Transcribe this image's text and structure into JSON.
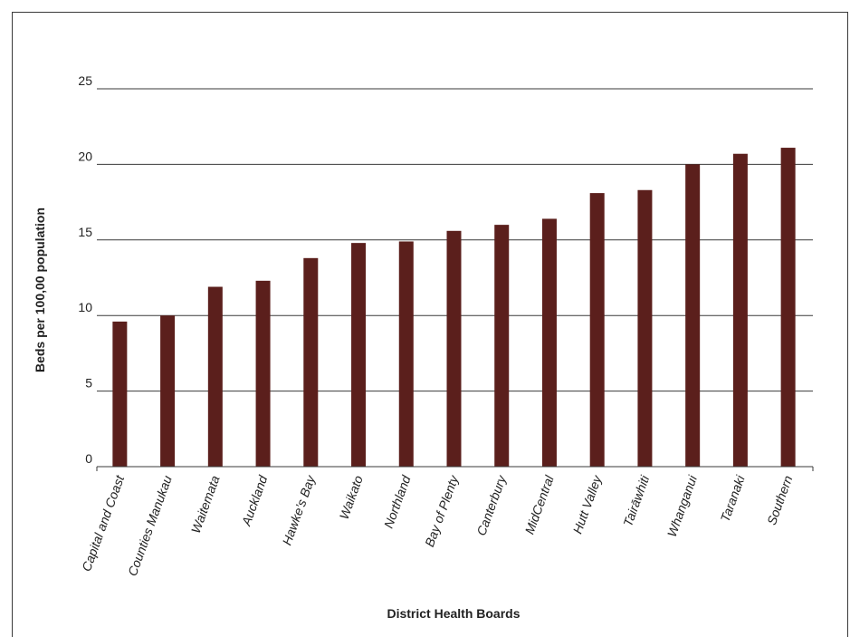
{
  "chart_data": {
    "type": "bar",
    "categories": [
      "Capital and Coast",
      "Counties Manukau",
      "Waitemata",
      "Auckland",
      "Hawke’s Bay",
      "Waikato",
      "Northland",
      "Bay of Plenty",
      "Canterbury",
      "MidCentral",
      "Hutt Valley",
      "Tairāwhiti",
      "Whanganui",
      "Taranaki",
      "Southern"
    ],
    "values": [
      9.6,
      10.0,
      11.9,
      12.3,
      13.8,
      14.8,
      14.9,
      15.6,
      16.0,
      16.4,
      18.1,
      18.3,
      20.0,
      20.7,
      21.1
    ],
    "xlabel": "District Health Boards",
    "ylabel": "Beds per 100,00 population",
    "ylim": [
      0,
      25
    ],
    "yticks": [
      "0",
      "5",
      "10",
      "15",
      "20",
      "25"
    ],
    "grid": true,
    "legend": "none",
    "bar_color": "#5b1f1c",
    "grid_color": "#3a3a3a"
  }
}
